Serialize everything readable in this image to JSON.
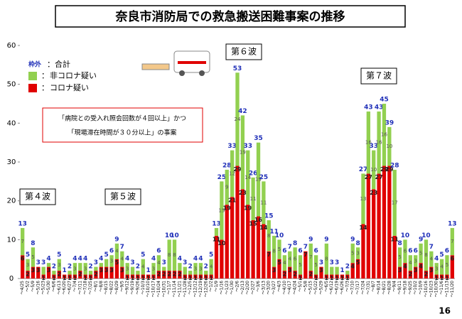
{
  "chart_data": {
    "type": "stacked_bar",
    "title": "奈良市消防局での救急搬送困難事案の推移",
    "categories": [
      "～4/25",
      "～5/2",
      "～5/9",
      "～5/16",
      "～5/23",
      "～5/30",
      "～6/6",
      "～6/13",
      "～6/20",
      "～6/27",
      "～7/4",
      "～7/11",
      "～7/18",
      "～7/25",
      "～8/1",
      "～8/8",
      "～8/15",
      "～8/22",
      "～8/29",
      "～9/5",
      "～9/12",
      "～9/19",
      "～9/26",
      "～10/3",
      "～10/10",
      "～10/17",
      "～10/24",
      "～10/31",
      "～11/7",
      "～11/14",
      "～11/21",
      "～11/28",
      "～12/5",
      "～12/12",
      "～12/19",
      "～12/26",
      "～1/2",
      "～1/9",
      "～1/16",
      "～1/23",
      "～1/30",
      "～2/6",
      "～2/13",
      "～2/20",
      "～2/27",
      "～3/6",
      "～3/13",
      "～3/20",
      "～3/27",
      "～4/3",
      "～4/10",
      "～4/17",
      "～4/24",
      "～5/1",
      "～5/8",
      "～5/15",
      "～5/22",
      "～5/29",
      "～6/5",
      "～6/12",
      "～6/19",
      "～6/26",
      "～7/3",
      "～7/10",
      "～7/17",
      "～7/24",
      "～7/31",
      "～8/7",
      "～8/14",
      "～8/21",
      "～8/28",
      "～9/4",
      "～9/11",
      "～9/18",
      "～9/25",
      "～10/2",
      "～10/9",
      "～10/16",
      "～10/23",
      "～10/30",
      "～11/6",
      "～11/13",
      "～11/20"
    ],
    "series": [
      {
        "name": "コロナ疑い",
        "color": "#e00000",
        "values": [
          6,
          2,
          3,
          3,
          1,
          3,
          1,
          2,
          1,
          1,
          1,
          2,
          1,
          1,
          2,
          3,
          3,
          3,
          5,
          3,
          1,
          1,
          1,
          1,
          1,
          1,
          2,
          2,
          2,
          2,
          2,
          1,
          1,
          1,
          1,
          1,
          1,
          11,
          10,
          19,
          21,
          29,
          23,
          19,
          15,
          16,
          14,
          7,
          3,
          5,
          2,
          3,
          2,
          1,
          7,
          2,
          1,
          3,
          1,
          1,
          1,
          1,
          1,
          4,
          5,
          14,
          27,
          23,
          27,
          29,
          29,
          11,
          3,
          4,
          2,
          3,
          4,
          2,
          3,
          1,
          1,
          1,
          6
        ]
      },
      {
        "name": "非コロナ疑い",
        "color": "#92d050",
        "values": [
          7,
          3,
          5,
          0,
          2,
          1,
          1,
          3,
          0,
          1,
          3,
          2,
          3,
          1,
          1,
          1,
          2,
          3,
          4,
          4,
          3,
          2,
          1,
          4,
          0,
          3,
          4,
          1,
          8,
          8,
          2,
          2,
          1,
          3,
          3,
          1,
          4,
          2,
          15,
          9,
          12,
          24,
          19,
          14,
          11,
          19,
          11,
          8,
          8,
          5,
          4,
          4,
          6,
          5,
          0,
          7,
          5,
          0,
          8,
          2,
          2,
          0,
          1,
          5,
          3,
          13,
          16,
          10,
          16,
          16,
          10,
          17,
          5,
          6,
          4,
          3,
          5,
          8,
          4,
          3,
          4,
          5,
          7
        ]
      }
    ],
    "totals": [
      13,
      5,
      8,
      3,
      3,
      4,
      2,
      5,
      1,
      2,
      4,
      4,
      4,
      2,
      3,
      4,
      5,
      6,
      9,
      7,
      4,
      3,
      2,
      5,
      1,
      4,
      6,
      3,
      10,
      10,
      4,
      3,
      2,
      4,
      4,
      2,
      5,
      13,
      25,
      28,
      33,
      53,
      42,
      33,
      26,
      35,
      25,
      15,
      11,
      10,
      6,
      7,
      8,
      6,
      7,
      9,
      6,
      3,
      9,
      3,
      3,
      1,
      2,
      9,
      8,
      27,
      43,
      33,
      43,
      45,
      39,
      28,
      8,
      10,
      6,
      6,
      9,
      10,
      7,
      4,
      5,
      6,
      13
    ],
    "totals_color": "#1f2fb8",
    "ylim": [
      0,
      60
    ],
    "yticks": [
      0,
      10,
      20,
      30,
      40,
      50,
      60
    ],
    "grid": false,
    "legend_total": {
      "frame": "枠外",
      "label": "：合計"
    },
    "legend_separator": "：",
    "waves": [
      "第４波",
      "第５波",
      "第６波",
      "第７波"
    ],
    "note": [
      "「病院との受入れ照会回数が４回以上」かつ",
      "「現場滞在時間が３０分以上」の事案"
    ],
    "page_number": "16"
  }
}
